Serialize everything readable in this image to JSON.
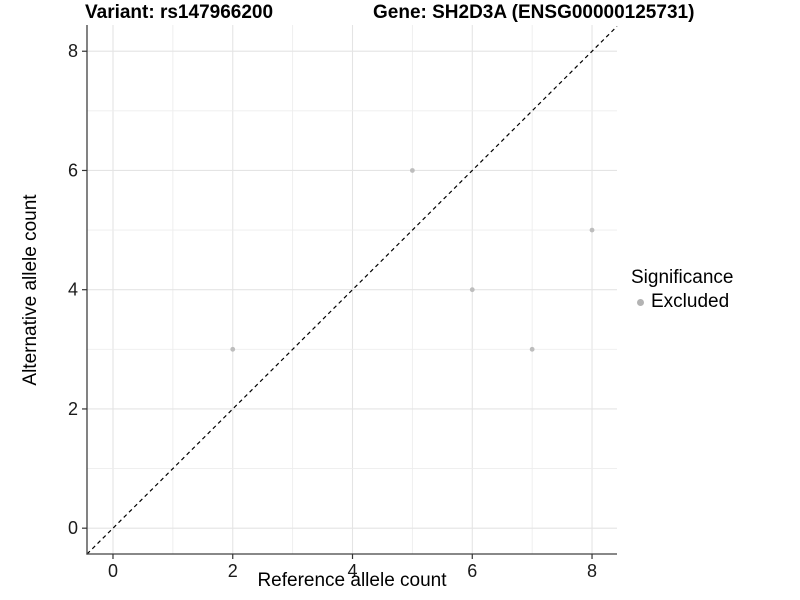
{
  "chart_data": {
    "type": "scatter",
    "title_left": "Variant: rs147966200",
    "title_right": "Gene: SH2D3A (ENSG00000125731)",
    "xlabel": "Reference allele count",
    "ylabel": "Alternative allele count",
    "xlim": [
      -0.434,
      8.417
    ],
    "ylim": [
      -0.433,
      8.44
    ],
    "x_ticks": [
      0,
      2,
      4,
      6,
      8
    ],
    "y_ticks": [
      0,
      2,
      4,
      6,
      8
    ],
    "grid": "on",
    "grid_step": 1,
    "legend": {
      "position": "right",
      "title": "Significance",
      "entries": [
        {
          "label": "Excluded",
          "color": "#b3b3b3"
        }
      ]
    },
    "series": [
      {
        "name": "Excluded",
        "color": "#bdbdbd",
        "points": [
          [
            2,
            3
          ],
          [
            5,
            6
          ],
          [
            6,
            4
          ],
          [
            7,
            3
          ],
          [
            8,
            5
          ]
        ]
      }
    ],
    "reference_line": {
      "type": "identity",
      "style": "dashed",
      "color": "#000000"
    },
    "colors": {
      "axis_line": "#404040",
      "tick": "#333333",
      "tick_label": "#1a1a1a",
      "grid_major": "#e4e4e4",
      "grid_minor": "#ededed",
      "background": "#ffffff"
    }
  }
}
